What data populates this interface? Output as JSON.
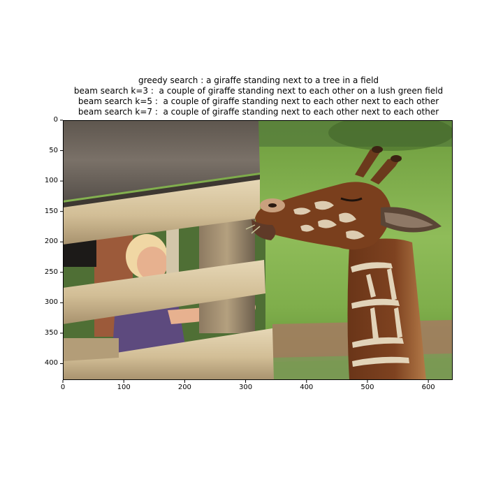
{
  "figure": {
    "title_lines": [
      "greedy search : a giraffe standing next to a tree in a field",
      "beam search k=3 :  a couple of giraffe standing next to each other on a lush green field",
      "beam search k=5 :  a couple of giraffe standing next to each other next to each other",
      "beam search k=7 :  a couple of giraffe standing next to each other next to each other"
    ]
  },
  "axes": {
    "x_ticks": [
      "0",
      "100",
      "200",
      "300",
      "400",
      "500",
      "600"
    ],
    "y_ticks": [
      "0",
      "50",
      "100",
      "150",
      "200",
      "250",
      "300",
      "350",
      "400"
    ],
    "xlim": [
      0,
      640
    ],
    "ylim": [
      427,
      0
    ]
  },
  "photo": {
    "subject": "giraffe-feeding-photo",
    "colors": {
      "grass": "#7fae4b",
      "grass_dark": "#4f7d2e",
      "wood_light": "#d9c7a1",
      "wood_dark": "#6f655b",
      "giraffe_brown": "#7a3f1d",
      "giraffe_light": "#e8dcc2",
      "child_skin": "#e7b18f",
      "child_hair": "#f0d7a4",
      "dirt": "#a57b62"
    }
  }
}
